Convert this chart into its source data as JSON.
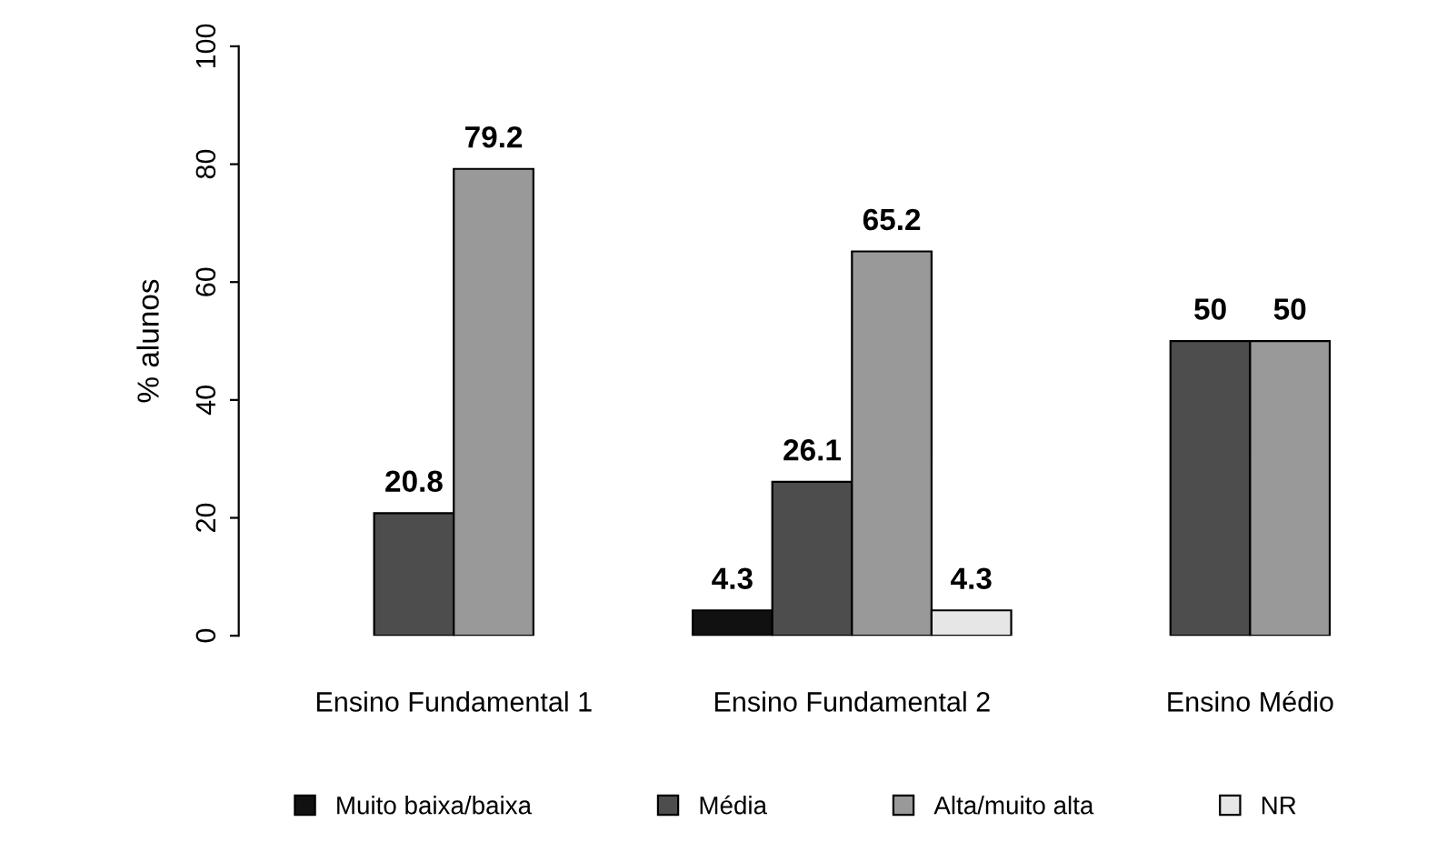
{
  "chart_data": {
    "type": "bar",
    "ylabel": "% alunos",
    "categories": [
      "Ensino Fundamental 1",
      "Ensino Fundamental 2",
      "Ensino Médio"
    ],
    "series": [
      {
        "name": "Muito baixa/baixa",
        "color": "#111111",
        "values": [
          null,
          4.3,
          null
        ],
        "value_labels": [
          null,
          "4.3",
          null
        ]
      },
      {
        "name": "Média",
        "color": "#4d4d4d",
        "values": [
          20.8,
          26.1,
          50
        ],
        "value_labels": [
          "20.8",
          "26.1",
          "50"
        ]
      },
      {
        "name": "Alta/muito alta",
        "color": "#999999",
        "values": [
          79.2,
          65.2,
          50
        ],
        "value_labels": [
          "79.2",
          "65.2",
          "50"
        ]
      },
      {
        "name": "NR",
        "color": "#e6e6e6",
        "values": [
          null,
          4.3,
          null
        ],
        "value_labels": [
          null,
          "4.3",
          null
        ]
      }
    ],
    "ylim": [
      0,
      100
    ],
    "yticks": [
      0,
      20,
      40,
      60,
      80,
      100
    ],
    "grid": false,
    "legend": "bottom"
  }
}
